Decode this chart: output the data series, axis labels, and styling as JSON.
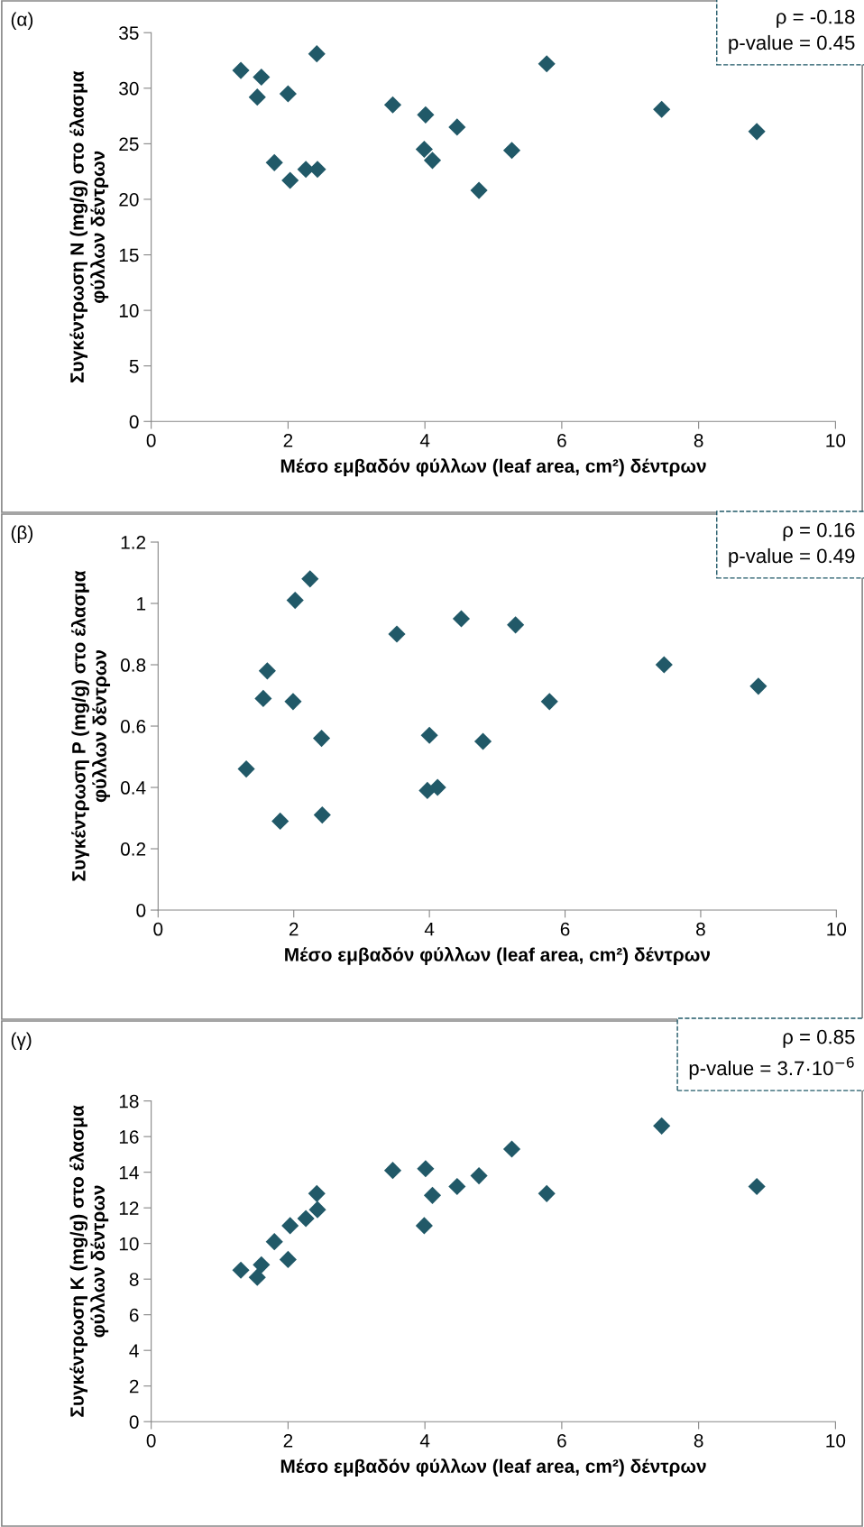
{
  "chart_data": [
    {
      "type": "scatter",
      "xlabel": "Μέσο εμβαδόν φύλλων (leaf area, cm²) δέντρων",
      "ylabel": "Συγκέντρωση N (mg/g) στο έλασμα\nφύλλων δέντρων",
      "annotations": [
        "(α)",
        "ρ = -0.18\np-value = 0.45"
      ],
      "marker": "diamond",
      "grid": false,
      "legend": false,
      "series": [
        {
          "color": "#215968",
          "x": [
            1.31,
            1.61,
            1.55,
            2.0,
            2.42,
            1.8,
            2.03,
            2.26,
            2.43,
            3.53,
            4.01,
            4.47,
            3.99,
            4.11,
            4.79,
            5.27,
            5.78,
            7.46,
            8.85
          ],
          "values": [
            31.6,
            31.0,
            29.2,
            29.5,
            33.1,
            23.3,
            21.7,
            22.7,
            22.7,
            28.5,
            27.6,
            26.5,
            24.5,
            23.5,
            20.8,
            24.4,
            32.2,
            28.1,
            26.1
          ]
        }
      ],
      "xlim": [
        0,
        10
      ],
      "xticks": [
        0,
        2,
        4,
        6,
        8,
        10
      ],
      "ylim": [
        0,
        35
      ],
      "yticks": [
        0,
        5,
        10,
        15,
        20,
        25,
        30,
        35
      ]
    },
    {
      "type": "scatter",
      "xlabel": "Μέσο εμβαδόν φύλλων (leaf area, cm²) δέντρων",
      "ylabel": "Συγκέντρωση P (mg/g) στο έλασμα\nφύλλων δέντρων",
      "annotations": [
        "(β)",
        "ρ = 0.16\np-value = 0.49"
      ],
      "marker": "diamond",
      "grid": false,
      "legend": false,
      "series": [
        {
          "color": "#215968",
          "x": [
            1.3,
            1.55,
            1.61,
            1.8,
            1.99,
            2.02,
            2.24,
            2.41,
            2.42,
            3.52,
            3.97,
            4.0,
            4.12,
            4.47,
            4.79,
            5.27,
            5.77,
            7.46,
            8.85
          ],
          "values": [
            0.46,
            0.69,
            0.78,
            0.29,
            0.68,
            1.01,
            1.08,
            0.56,
            0.31,
            0.9,
            0.39,
            0.57,
            0.4,
            0.95,
            0.55,
            0.93,
            0.68,
            0.8,
            0.73
          ]
        }
      ],
      "xlim": [
        0,
        10
      ],
      "xticks": [
        0,
        2,
        4,
        6,
        8,
        10
      ],
      "ylim": [
        0,
        1.2
      ],
      "yticks": [
        0,
        0.2,
        0.4,
        0.6,
        0.8,
        1,
        1.2
      ]
    },
    {
      "type": "scatter",
      "xlabel": "Μέσο εμβαδόν φύλλων (leaf area, cm²) δέντρων",
      "ylabel": "Συγκέντρωση K (mg/g) στο έλασμα\nφύλλων δέντρων",
      "annotations": [
        "(γ)",
        "ρ = 0.85\np-value = 3.7·10$^{−6}$"
      ],
      "marker": "diamond",
      "grid": false,
      "legend": false,
      "series": [
        {
          "color": "#215968",
          "x": [
            1.31,
            1.55,
            1.61,
            1.8,
            2.0,
            2.03,
            2.26,
            2.43,
            2.42,
            3.53,
            3.99,
            4.01,
            4.11,
            4.47,
            4.79,
            5.27,
            5.78,
            7.46,
            8.85
          ],
          "values": [
            8.5,
            8.1,
            8.8,
            10.1,
            9.1,
            11.0,
            11.4,
            11.9,
            12.8,
            14.1,
            11.0,
            14.2,
            12.7,
            13.2,
            13.8,
            15.3,
            12.8,
            16.6,
            13.2
          ]
        }
      ],
      "xlim": [
        0,
        10
      ],
      "xticks": [
        0,
        2,
        4,
        6,
        8,
        10
      ],
      "ylim": [
        0,
        18
      ],
      "yticks": [
        0,
        2,
        4,
        6,
        8,
        10,
        12,
        14,
        16,
        18
      ]
    }
  ]
}
